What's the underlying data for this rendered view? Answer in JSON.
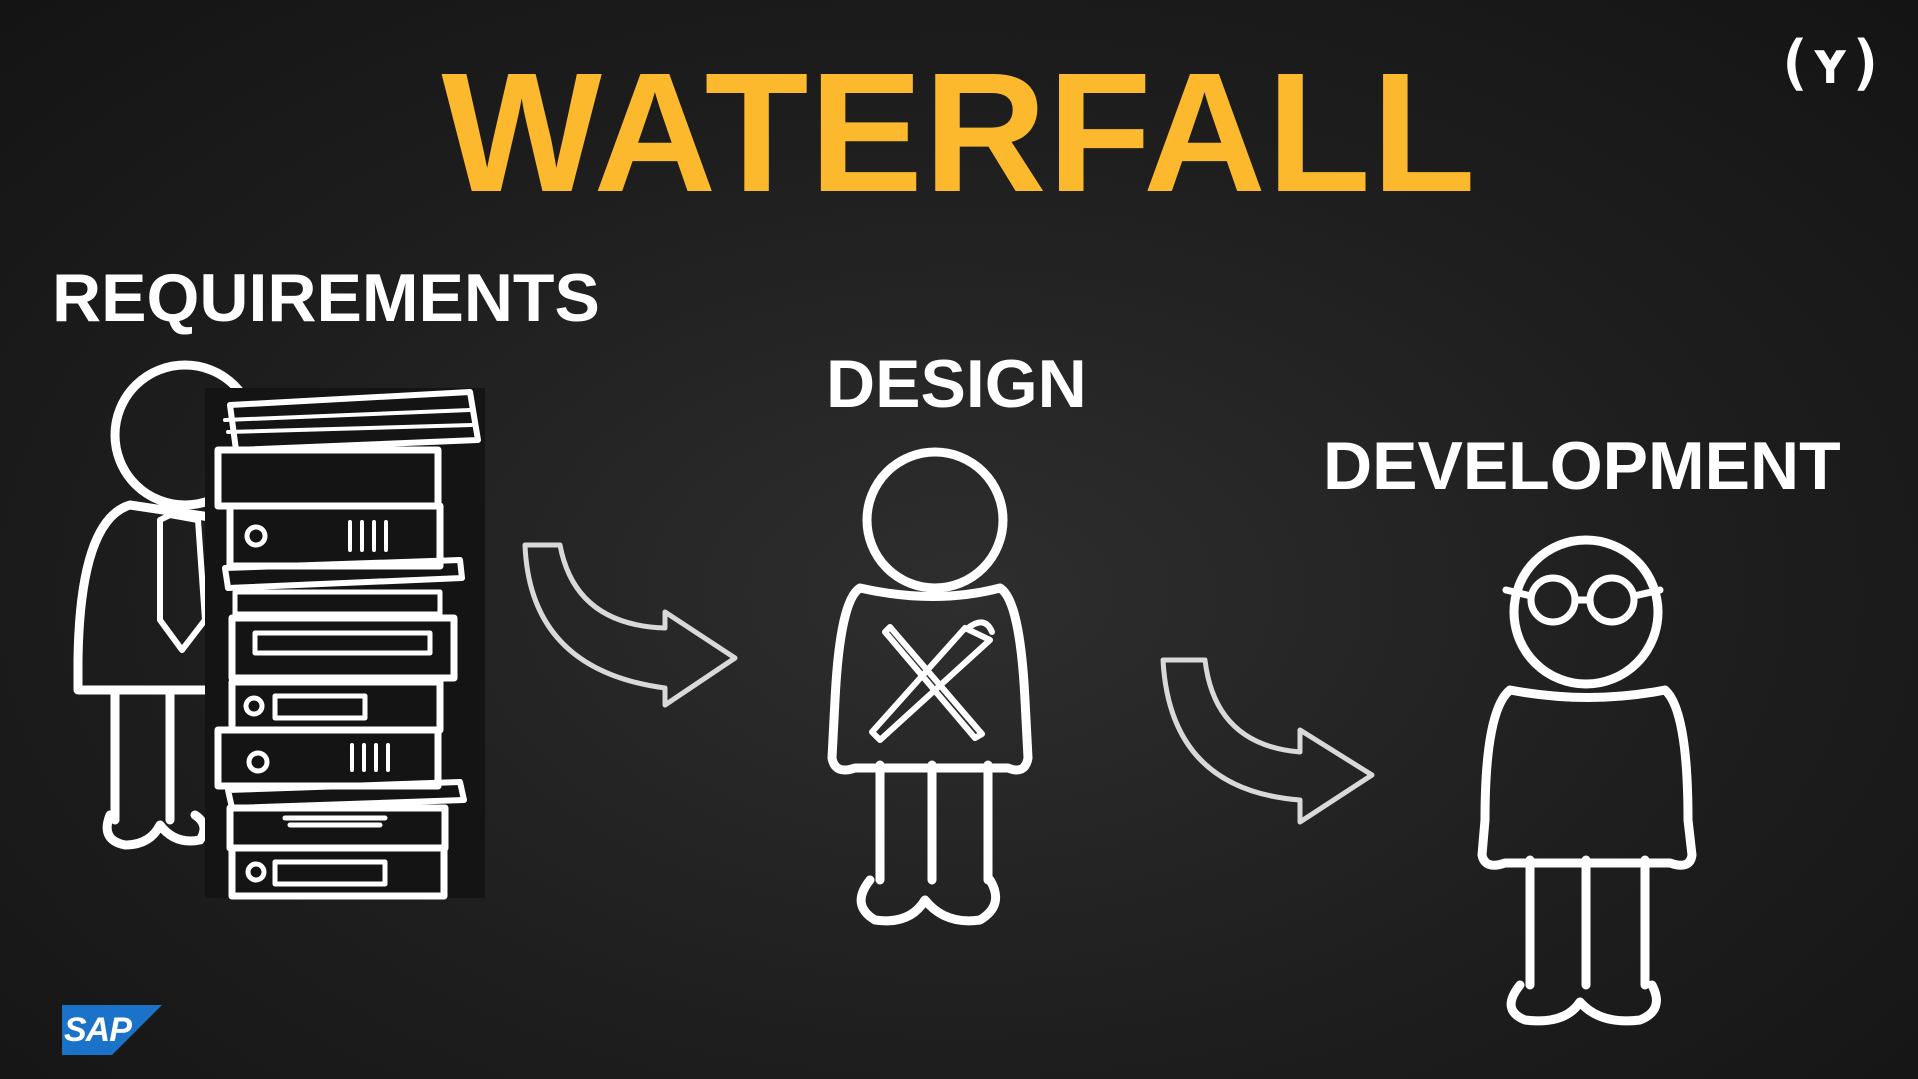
{
  "title": "WATERFALL",
  "stages": [
    {
      "label": "REQUIREMENTS",
      "figure": "businessman-with-binder-stack"
    },
    {
      "label": "DESIGN",
      "figure": "designer-with-pencil-and-brush"
    },
    {
      "label": "DEVELOPMENT",
      "figure": "developer-with-glasses"
    }
  ],
  "connectors": [
    "curved-arrow-right",
    "curved-arrow-right"
  ],
  "logos": {
    "top_right": "(ʏ)",
    "bottom_left": "SAP"
  },
  "colors": {
    "title": "#fdb92e",
    "background": "#1e1e1e",
    "foreground": "#ffffff",
    "arrow": "#d9d9d9"
  }
}
